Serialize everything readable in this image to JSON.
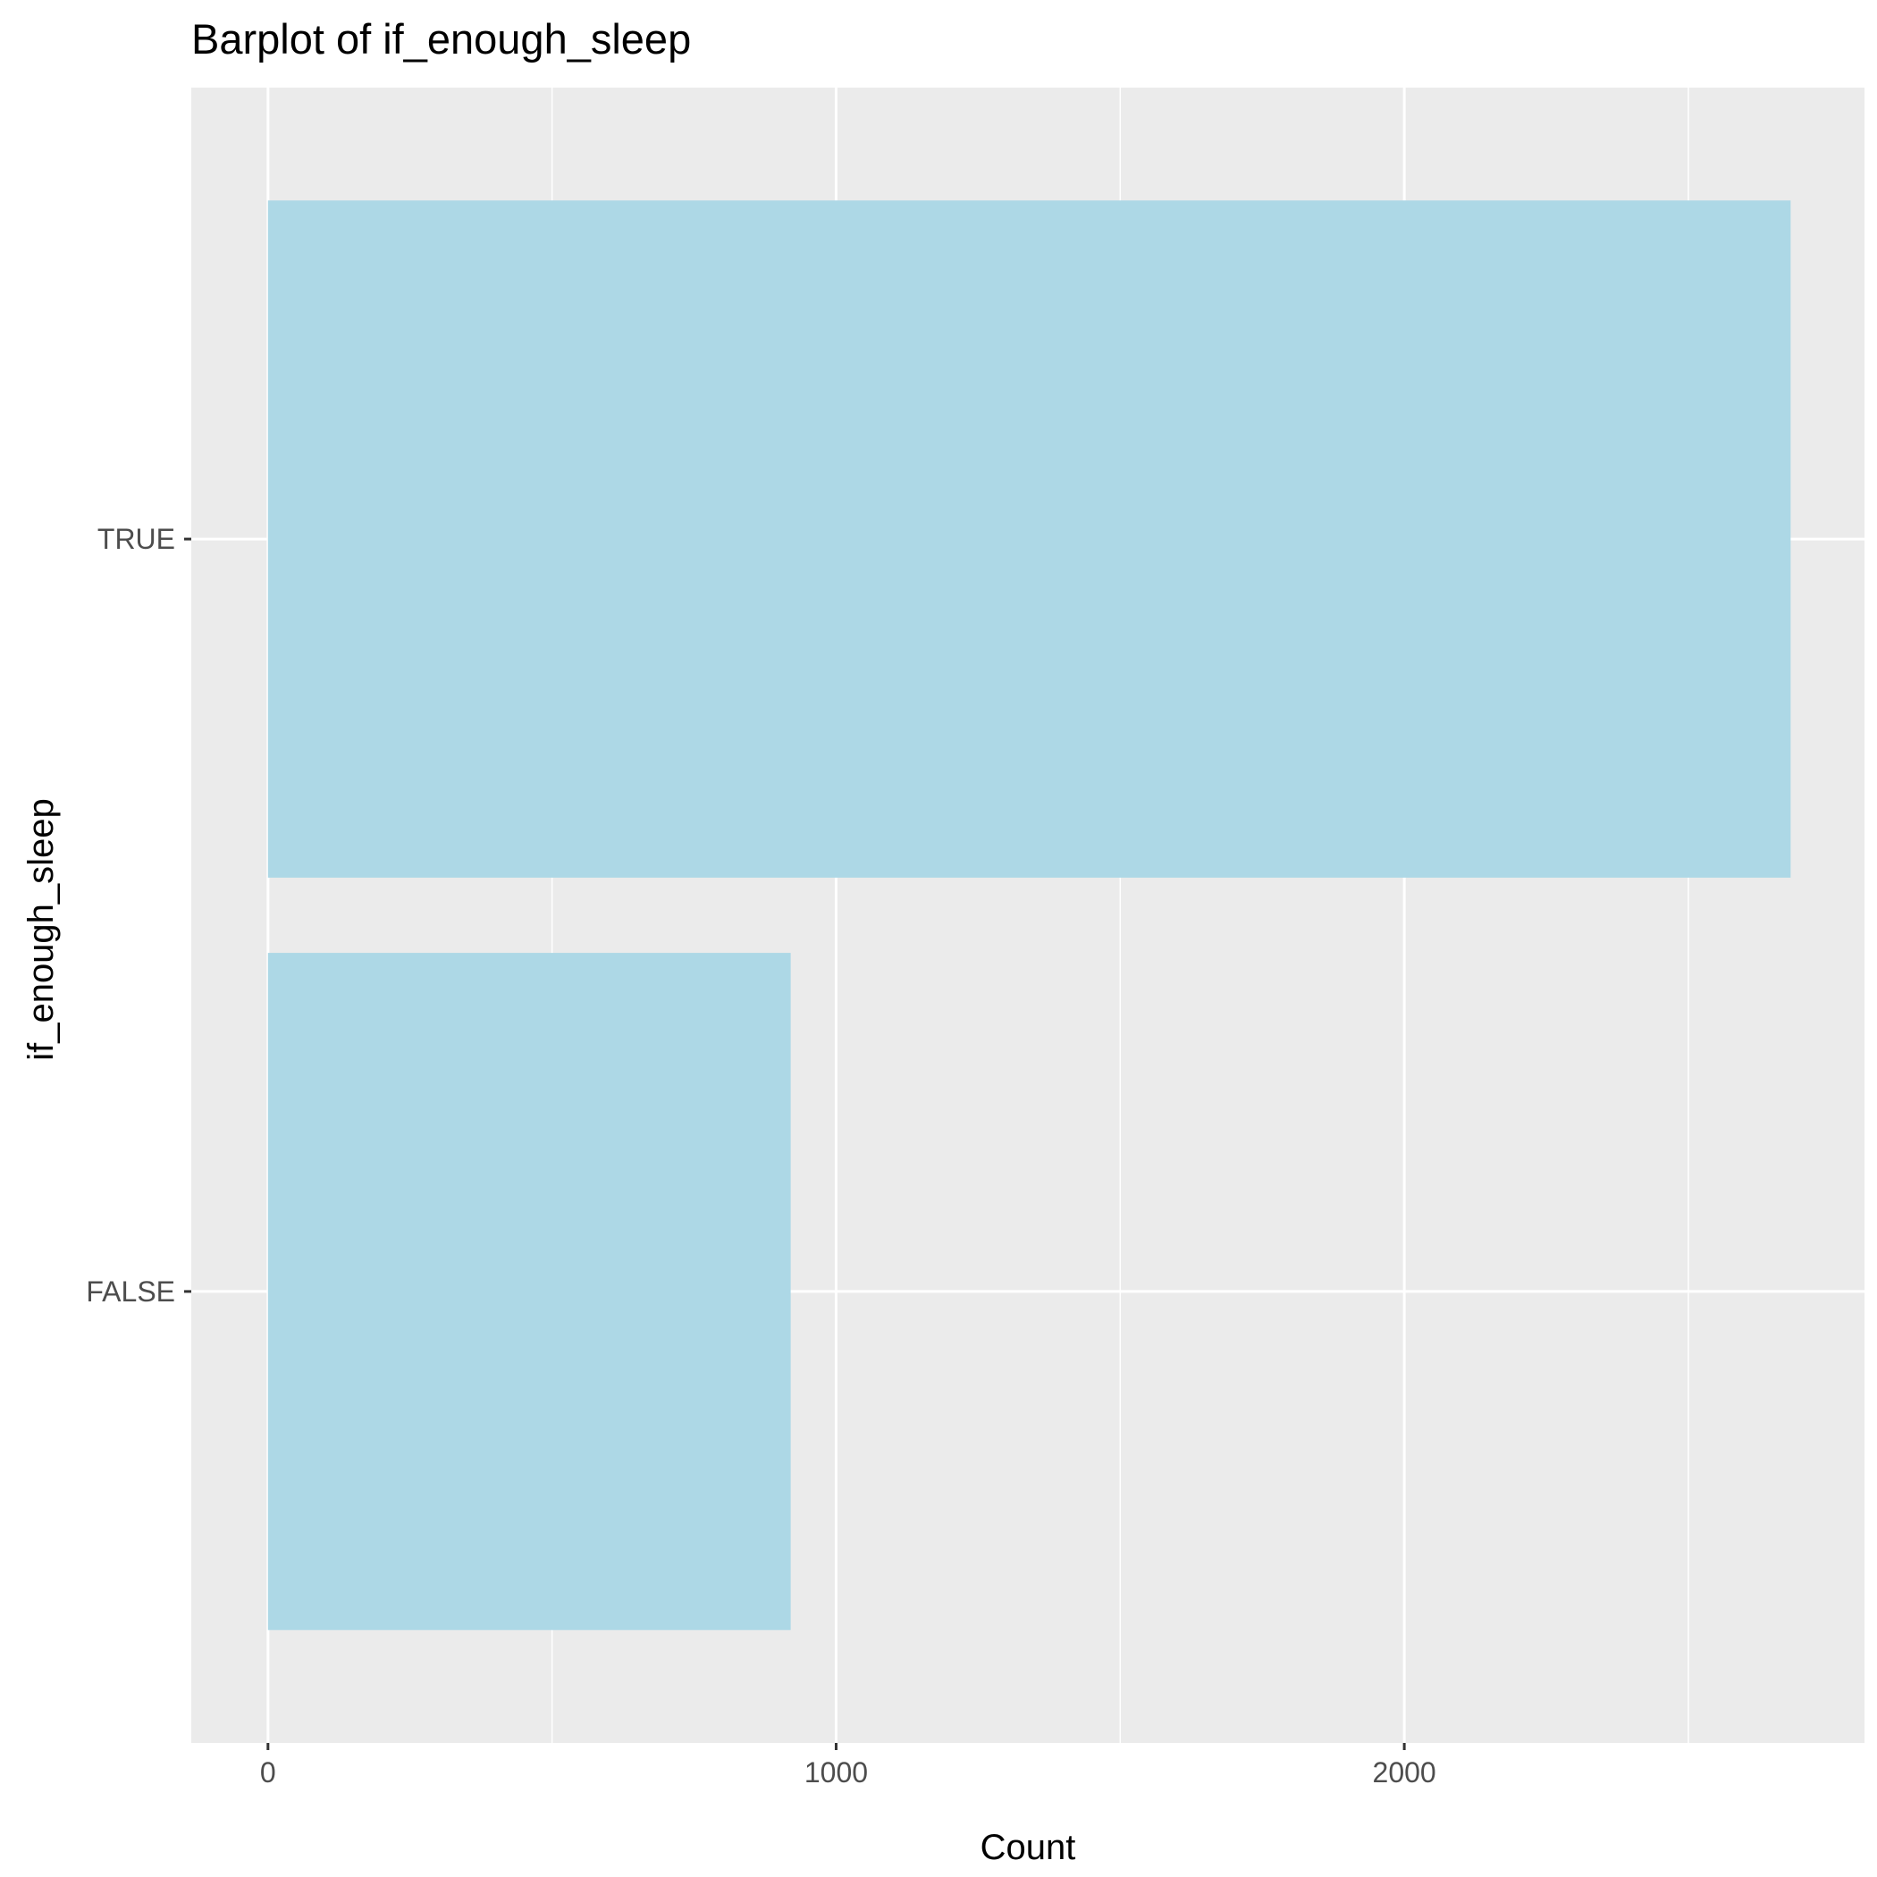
{
  "chart_data": {
    "type": "bar",
    "orientation": "horizontal",
    "title": "Barplot of if_enough_sleep",
    "xlabel": "Count",
    "ylabel": "if_enough_sleep",
    "categories": [
      "FALSE",
      "TRUE"
    ],
    "values": [
      920,
      2680
    ],
    "xlim": [
      -135,
      2810
    ],
    "x_ticks": [
      0,
      1000,
      2000
    ],
    "x_tick_labels": [
      "0",
      "1000",
      "2000"
    ],
    "grid": true,
    "legend": "none",
    "colors": {
      "bar_fill": "#add8e6",
      "panel_background": "#ebebeb",
      "grid_line": "#ffffff",
      "tick_label": "#4d4d4d",
      "tick_mark": "#333333",
      "text": "#000000"
    }
  }
}
